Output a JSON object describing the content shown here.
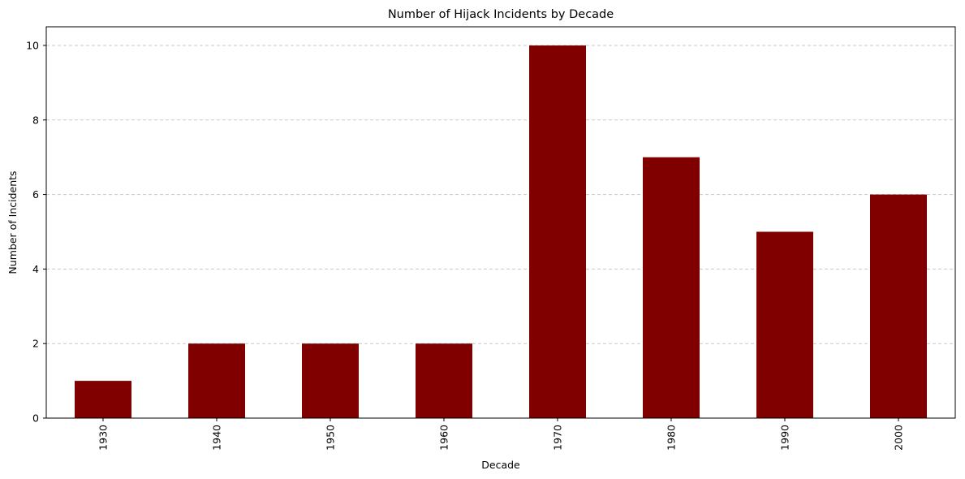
{
  "chart_data": {
    "type": "bar",
    "title": "Number of Hijack Incidents by Decade",
    "xlabel": "Decade",
    "ylabel": "Number of Incidents",
    "categories": [
      "1930",
      "1940",
      "1950",
      "1960",
      "1970",
      "1980",
      "1990",
      "2000"
    ],
    "values": [
      1,
      2,
      2,
      2,
      10,
      7,
      5,
      6
    ],
    "ylim": [
      0,
      10.5
    ],
    "yticks": [
      0,
      2,
      4,
      6,
      8,
      10
    ],
    "grid": "y-dashed",
    "x_tick_rotation": "vertical",
    "colors": {
      "bar": "#800000",
      "grid": "#c8c8c8",
      "axis": "#000000"
    }
  }
}
